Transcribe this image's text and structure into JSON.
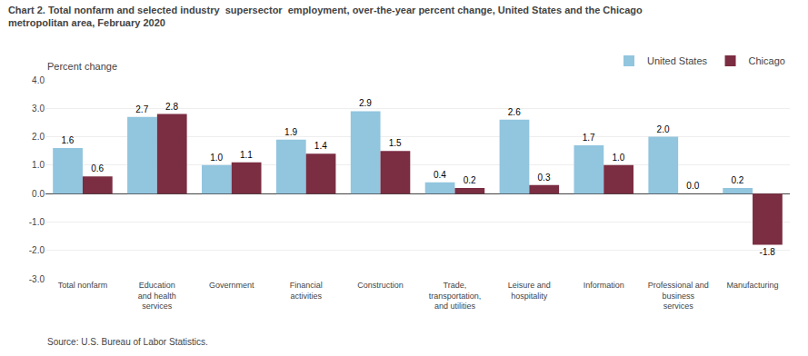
{
  "chart_data": {
    "type": "bar",
    "title": "Chart 2. Total nonfarm and selected industry  supersector  employment, over-the-year percent change, United States and the Chicago\nmetropolitan area, February 2020",
    "ylabel": "Percent change",
    "source": "Source: U.S. Bureau of Labor Statistics.",
    "categories": [
      "Total nonfarm",
      "Education\nand health\nservices",
      "Government",
      "Financial\nactivities",
      "Construction",
      "Trade,\ntransportation,\nand utilities",
      "Leisure and\nhospitality",
      "Information",
      "Professional and\nbusiness\nservices",
      "Manufacturing"
    ],
    "series": [
      {
        "name": "United States",
        "color": "#92C5DE",
        "values": [
          1.6,
          2.7,
          1.0,
          1.9,
          2.9,
          0.4,
          2.6,
          1.7,
          2.0,
          0.2
        ],
        "value_labels": [
          "1.6",
          "2.7",
          "1.0",
          "1.9",
          "2.9",
          "0.4",
          "2.6",
          "1.7",
          "2.0",
          "0.2"
        ]
      },
      {
        "name": "Chicago",
        "color": "#7B2D42",
        "values": [
          0.6,
          2.8,
          1.1,
          1.4,
          1.5,
          0.2,
          0.3,
          1.0,
          0.0,
          -1.8
        ],
        "value_labels": [
          "0.6",
          "2.8",
          "1.1",
          "1.4",
          "1.5",
          "0.2",
          "0.3",
          "1.0",
          "0.0",
          "-1.8"
        ]
      }
    ],
    "ylim": [
      -3.0,
      4.0
    ],
    "yticks": [
      {
        "value": -3.0,
        "label": "-3.0"
      },
      {
        "value": -2.0,
        "label": "-2.0"
      },
      {
        "value": -1.0,
        "label": "-1.0"
      },
      {
        "value": 0.0,
        "label": "0.0"
      },
      {
        "value": 1.0,
        "label": "1.0"
      },
      {
        "value": 2.0,
        "label": "2.0"
      },
      {
        "value": 3.0,
        "label": "3.0"
      },
      {
        "value": 4.0,
        "label": "4.0"
      }
    ],
    "grid": true,
    "legend": "upper right",
    "data_labels": true
  }
}
